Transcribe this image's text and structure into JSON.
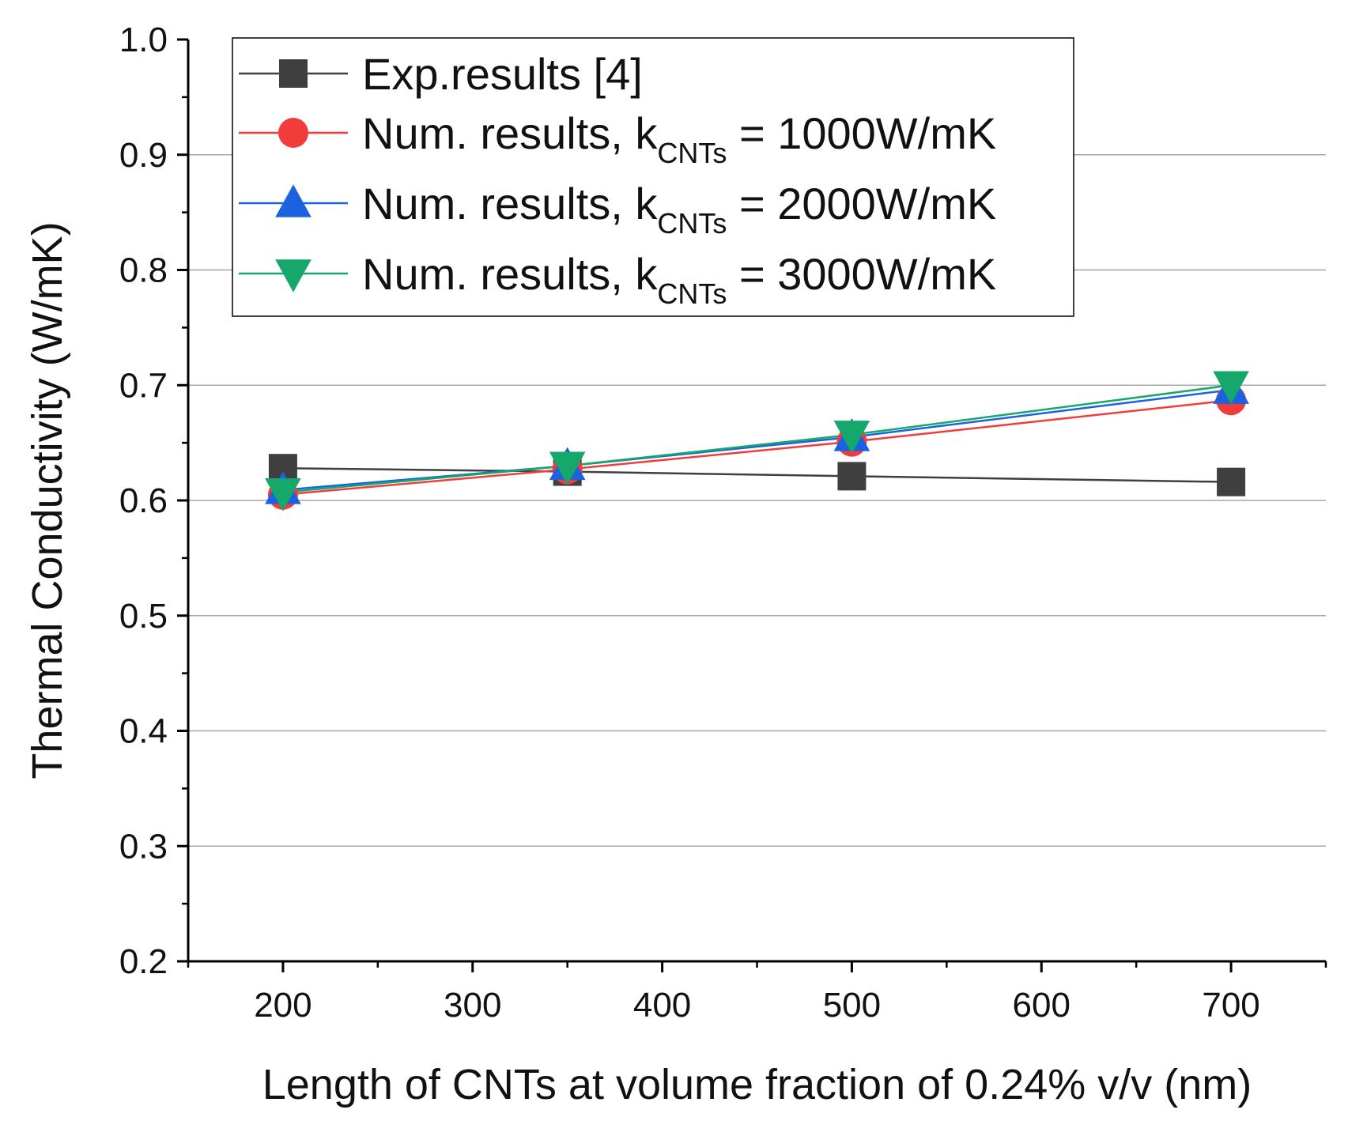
{
  "chart_data": {
    "type": "line",
    "xlabel": "Length of CNTs at volume fraction of 0.24% v/v (nm)",
    "ylabel": "Thermal Conductivity (W/mK)",
    "xlim": [
      150,
      750
    ],
    "ylim": [
      0.2,
      1.0
    ],
    "x_ticks": [
      200,
      300,
      400,
      500,
      600,
      700
    ],
    "y_ticks": [
      0.2,
      0.3,
      0.4,
      0.5,
      0.6,
      0.7,
      0.8,
      0.9,
      1.0
    ],
    "x_tick_labels": [
      "200",
      "300",
      "400",
      "500",
      "600",
      "700"
    ],
    "y_tick_labels": [
      "0.2",
      "0.3",
      "0.4",
      "0.5",
      "0.6",
      "0.7",
      "0.8",
      "0.9",
      "1.0"
    ],
    "grid": "horizontal",
    "legend_position": "top-left",
    "x": [
      200,
      350,
      500,
      700
    ],
    "series": [
      {
        "name": "Exp.results [4]",
        "legend_main": "Exp.results [4]",
        "legend_sub": "",
        "legend_tail": "",
        "color": "#3f3f3f",
        "marker": "square",
        "values": [
          0.628,
          0.625,
          0.621,
          0.616
        ]
      },
      {
        "name": "Num. results, kCNTs = 1000W/mK",
        "legend_main": "Num. results, k",
        "legend_sub": "CNTs",
        "legend_tail": " = 1000W/mK",
        "color": "#f23b3b",
        "marker": "circle",
        "values": [
          0.605,
          0.627,
          0.651,
          0.687
        ]
      },
      {
        "name": "Num. results, kCNTs = 2000W/mK",
        "legend_main": "Num. results, k",
        "legend_sub": "CNTs",
        "legend_tail": " = 2000W/mK",
        "color": "#1b62e0",
        "marker": "triangle-up",
        "values": [
          0.609,
          0.63,
          0.655,
          0.696
        ]
      },
      {
        "name": "Num. results, kCNTs = 3000W/mK",
        "legend_main": "Num. results, k",
        "legend_sub": "CNTs",
        "legend_tail": " = 3000W/mK",
        "color": "#16a86a",
        "marker": "triangle-down",
        "values": [
          0.607,
          0.63,
          0.657,
          0.7
        ]
      }
    ]
  }
}
